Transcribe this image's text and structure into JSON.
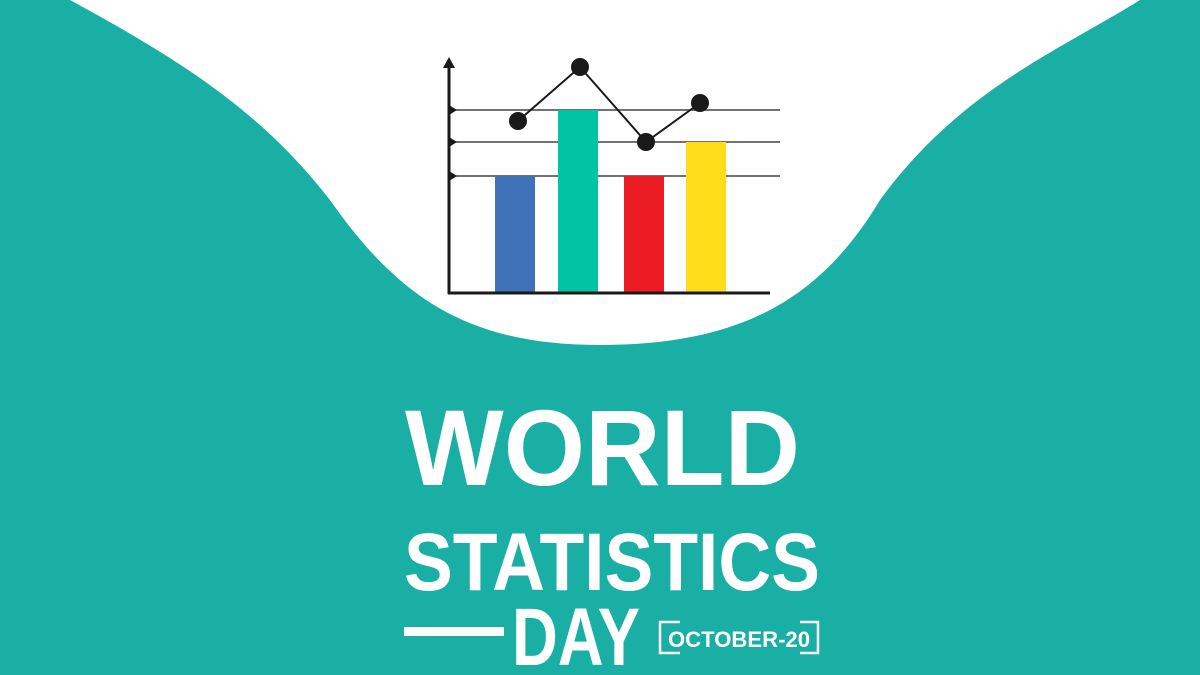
{
  "colors": {
    "background": "#1aafa5",
    "panel": "#ffffff",
    "ink": "#1a1a1a",
    "bars": [
      "#3f72b8",
      "#00c4a4",
      "#ec1c24",
      "#ffdd1a"
    ]
  },
  "poster": {
    "line1": "WORLD",
    "line2": "STATISTICS",
    "line3": "DAY",
    "date": "OCTOBER-20"
  }
}
